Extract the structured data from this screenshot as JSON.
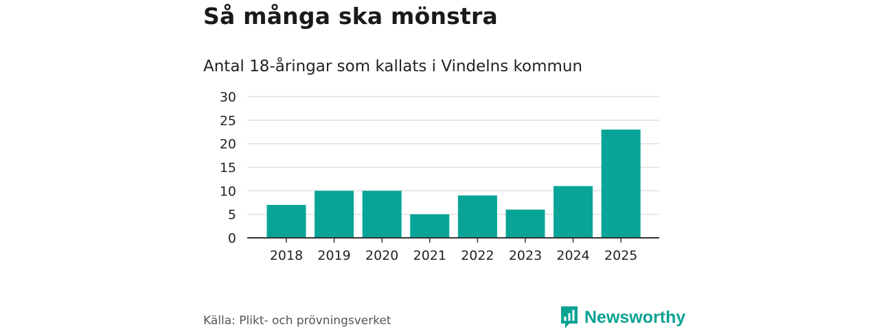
{
  "title": "Så många ska mönstra",
  "subtitle": "Antal 18-åringar som kallats i Vindelns kommun",
  "source": "Källa: Plikt- och prövningsverket",
  "brand": {
    "name": "Newsworthy",
    "logo_icon": "newsworthy-logo-icon",
    "color": "#0aa293"
  },
  "colors": {
    "bar": "#07a497",
    "grid": "#dddddd",
    "axis": "#333333",
    "tick_text": "#222222"
  },
  "chart_data": {
    "type": "bar",
    "title": "Så många ska mönstra",
    "subtitle": "Antal 18-åringar som kallats i Vindelns kommun",
    "xlabel": "",
    "ylabel": "",
    "categories": [
      "2018",
      "2019",
      "2020",
      "2021",
      "2022",
      "2023",
      "2024",
      "2025"
    ],
    "values": [
      7,
      10,
      10,
      5,
      9,
      6,
      11,
      23
    ],
    "ylim": [
      0,
      30
    ],
    "yticks": [
      0,
      5,
      10,
      15,
      20,
      25,
      30
    ],
    "grid": true,
    "legend": "none"
  }
}
